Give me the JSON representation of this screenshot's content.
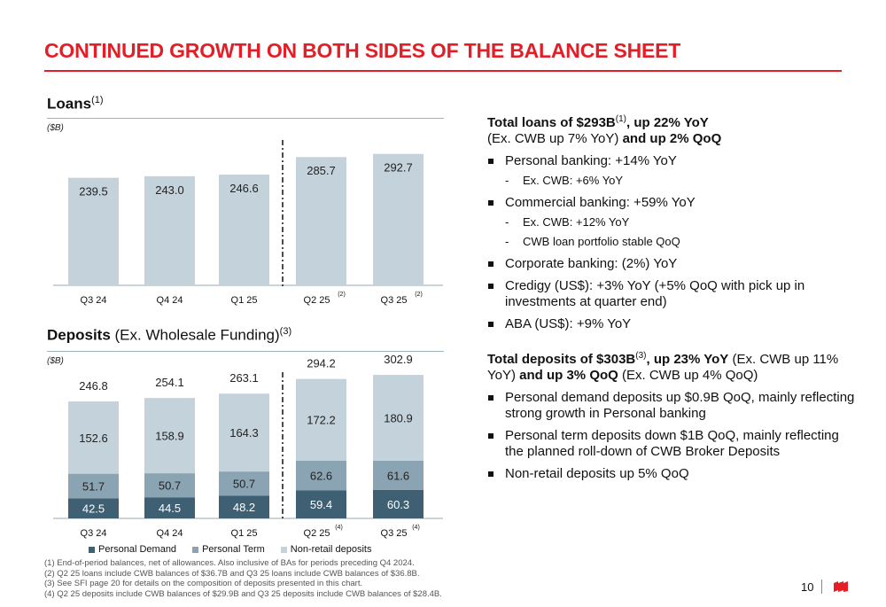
{
  "page": {
    "title": "CONTINUED GROWTH ON BOTH SIDES OF THE BALANCE SHEET",
    "page_number": "10"
  },
  "loans_header": {
    "bold": "Loans",
    "sup": "(1)",
    "unit": "($B)"
  },
  "deposits_header": {
    "bold": "Deposits",
    "rest": " (Ex. Wholesale Funding)",
    "sup": "(3)",
    "unit": "($B)"
  },
  "chart_data": [
    {
      "type": "bar",
      "title": "Loans",
      "categories": [
        "Q3 24",
        "Q4 24",
        "Q1 25",
        "Q2 25",
        "Q3 25"
      ],
      "category_notes": [
        "",
        "",
        "",
        "(2)",
        "(2)"
      ],
      "values": [
        239.5,
        243.0,
        246.6,
        285.7,
        292.7
      ],
      "value_labels": [
        "239.5",
        "243.0",
        "246.6",
        "285.7",
        "292.7"
      ],
      "ylabel": "($B)",
      "ylim": [
        0,
        300
      ],
      "color": "#c4d3db",
      "divider_after_category": 2
    },
    {
      "type": "bar",
      "stacked": true,
      "title": "Deposits (Ex. Wholesale Funding)",
      "categories": [
        "Q3 24",
        "Q4 24",
        "Q1 25",
        "Q2 25",
        "Q3 25"
      ],
      "category_notes": [
        "",
        "",
        "",
        "(4)",
        "(4)"
      ],
      "series": [
        {
          "name": "Personal Demand",
          "values": [
            42.5,
            44.5,
            48.2,
            59.4,
            60.3
          ],
          "labels": [
            "42.5",
            "44.5",
            "48.2",
            "59.4",
            "60.3"
          ],
          "color": "#3f5f73"
        },
        {
          "name": "Personal Term",
          "values": [
            51.7,
            50.7,
            50.7,
            62.6,
            61.6
          ],
          "labels": [
            "51.7",
            "50.7",
            "50.7",
            "62.6",
            "61.6"
          ],
          "color": "#8ba4b3"
        },
        {
          "name": "Non-retail deposits",
          "values": [
            152.6,
            158.9,
            164.3,
            172.2,
            180.9
          ],
          "labels": [
            "152.6",
            "158.9",
            "164.3",
            "172.2",
            "180.9"
          ],
          "color": "#c4d3db"
        }
      ],
      "totals": [
        246.8,
        254.1,
        263.1,
        294.2,
        302.9
      ],
      "total_labels": [
        "246.8",
        "254.1",
        "263.1",
        "294.2",
        "302.9"
      ],
      "ylabel": "($B)",
      "ylim": [
        0,
        310
      ],
      "legend": "bottom",
      "divider_after_category": 2
    }
  ],
  "right": {
    "loans_heading": {
      "bold1": "Total loans of $293B",
      "sup": "(1)",
      "bold2": ", up 22% YoY",
      "line2_normal": "(Ex. CWB up 7% YoY) ",
      "line2_bold": "and up 2% QoQ"
    },
    "loans_bullets": [
      {
        "text": "Personal banking: +14% YoY",
        "subs": [
          "Ex. CWB: +6% YoY"
        ]
      },
      {
        "text": "Commercial banking: +59% YoY",
        "subs": [
          "Ex. CWB: +12% YoY",
          "CWB loan portfolio stable QoQ"
        ]
      },
      {
        "text": "Corporate banking: (2%) YoY",
        "subs": []
      },
      {
        "text": "Credigy (US$): +3% YoY (+5% QoQ with pick up in investments at quarter end)",
        "subs": []
      },
      {
        "text": "ABA (US$): +9% YoY",
        "subs": []
      }
    ],
    "deposits_heading": {
      "bold1": "Total deposits of $303B",
      "sup": "(3)",
      "bold2": ", up 23% YoY",
      "normal1": " (Ex. CWB up 11% YoY) ",
      "bold3": "and up 3% QoQ",
      "normal2": " (Ex. CWB up 4% QoQ)"
    },
    "deposits_bullets": [
      "Personal demand deposits up $0.9B QoQ, mainly reflecting strong growth in Personal banking",
      "Personal term deposits down $1B QoQ, mainly reflecting the planned roll-down of CWB Broker Deposits",
      "Non-retail deposits up 5% QoQ"
    ]
  },
  "footnotes": [
    "(1)  End-of-period balances, net of allowances. Also inclusive of BAs for periods preceding Q4 2024.",
    "(2)  Q2 25 loans include CWB balances of $36.7B and Q3 25 loans include CWB balances of $36.8B.",
    "(3)  See SFI page 20 for details on the composition of deposits presented in this chart.",
    "(4)  Q2 25 deposits include CWB balances of $29.9B and Q3 25 deposits include CWB balances of $28.4B."
  ],
  "colors": {
    "accent": "#e31e26"
  }
}
